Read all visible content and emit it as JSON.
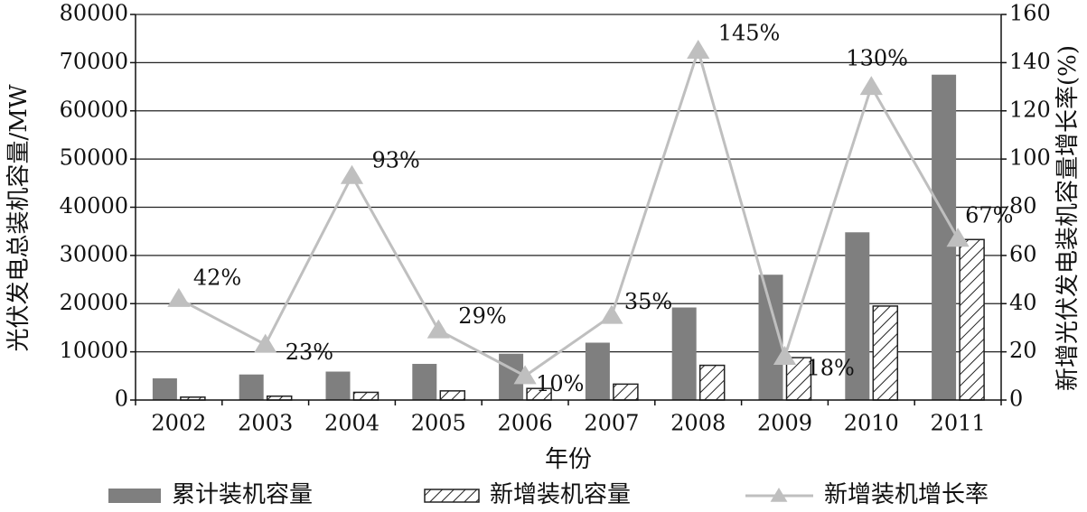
{
  "chart_data": {
    "type": "bar",
    "categories": [
      "2002",
      "2003",
      "2004",
      "2005",
      "2006",
      "2007",
      "2008",
      "2009",
      "2010",
      "2011"
    ],
    "xlabel": "年份",
    "ylabel": "光伏发电总装机容量/MW",
    "y2label": "新增光伏发电装机容量增长率(%)",
    "ylim": [
      0,
      80000
    ],
    "y2lim": [
      0,
      160
    ],
    "yticks": [
      0,
      10000,
      20000,
      30000,
      40000,
      50000,
      60000,
      70000,
      80000
    ],
    "y2ticks": [
      0,
      20,
      40,
      60,
      80,
      100,
      120,
      140,
      160
    ],
    "grid": "horizontal",
    "legend_position": "bottom",
    "series": [
      {
        "name": "累计装机容量",
        "kind": "bar",
        "axis": "left",
        "color": "#7f7f7f",
        "values": [
          4500,
          5300,
          5900,
          7500,
          9600,
          11900,
          19200,
          26000,
          34800,
          67500
        ]
      },
      {
        "name": "新增装机容量",
        "kind": "bar-hatched",
        "axis": "left",
        "color": "#ffffff",
        "values": [
          600,
          800,
          1600,
          1900,
          2400,
          3300,
          7200,
          8800,
          19500,
          33300
        ]
      },
      {
        "name": "新增装机增长率",
        "kind": "line",
        "axis": "right",
        "color": "#bfbfbf",
        "values": [
          42,
          23,
          93,
          29,
          10,
          35,
          145,
          18,
          130,
          67
        ],
        "labels": [
          "42%",
          "23%",
          "93%",
          "29%",
          "10%",
          "35%",
          "145%",
          "18%",
          "130%",
          "67%"
        ]
      }
    ]
  }
}
